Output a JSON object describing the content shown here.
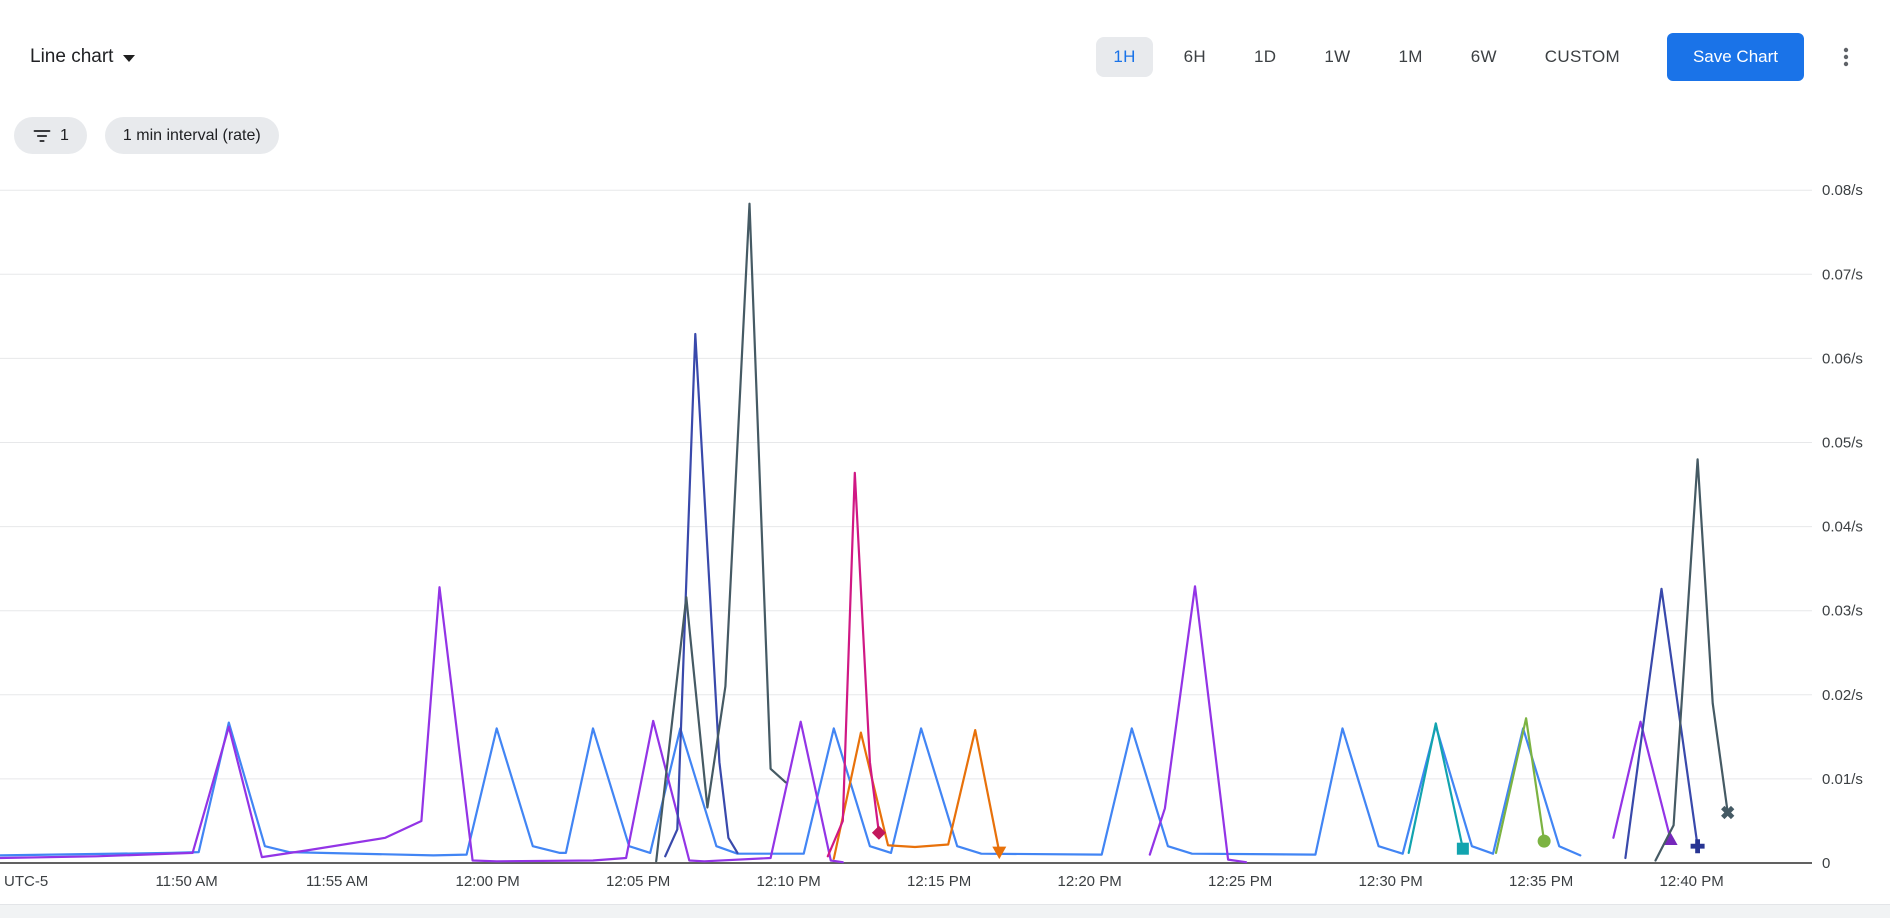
{
  "header": {
    "chart_type_label": "Line chart",
    "time_ranges": [
      "1H",
      "6H",
      "1D",
      "1W",
      "1M",
      "6W",
      "CUSTOM"
    ],
    "selected_range": "1H",
    "save_button_label": "Save Chart",
    "accent_color": "#1a73e8"
  },
  "filters": {
    "filter_count": "1",
    "interval_chip": "1 min interval (rate)"
  },
  "icons": {
    "dropdown": "chevron-down-icon",
    "filter": "filter-list-icon",
    "more": "vertical-ellipsis-icon"
  },
  "chart_data": {
    "type": "line",
    "title": "",
    "grid": true,
    "legend_position": "none",
    "x_axis": {
      "timezone_label": "UTC-5",
      "unit": "minutes_after_11:00_AM",
      "tick_labels": [
        "11:50 AM",
        "11:55 AM",
        "12:00 PM",
        "12:05 PM",
        "12:10 PM",
        "12:15 PM",
        "12:20 PM",
        "12:25 PM",
        "12:30 PM",
        "12:35 PM",
        "12:40 PM"
      ],
      "tick_minutes": [
        50,
        55,
        60,
        65,
        70,
        75,
        80,
        85,
        90,
        95,
        100
      ],
      "domain_minutes": [
        43.8,
        104.0
      ]
    },
    "y_axis": {
      "tick_labels": [
        "0",
        "0.01/s",
        "0.02/s",
        "0.03/s",
        "0.04/s",
        "0.05/s",
        "0.06/s",
        "0.07/s",
        "0.08/s"
      ],
      "tick_values": [
        0,
        0.01,
        0.02,
        0.03,
        0.04,
        0.05,
        0.06,
        0.07,
        0.08
      ],
      "ylim": [
        0,
        0.0835
      ]
    },
    "series": [
      {
        "name": "blue-series",
        "color": "#4285F4",
        "segments": [
          [
            [
              43.8,
              0.0009
            ],
            [
              49.5,
              0.0012
            ],
            [
              50.4,
              0.0013
            ],
            [
              51.4,
              0.0167
            ],
            [
              52.6,
              0.002
            ],
            [
              53.4,
              0.0013
            ],
            [
              58.2,
              0.0009
            ],
            [
              59.3,
              0.001
            ],
            [
              60.3,
              0.016
            ],
            [
              61.5,
              0.002
            ],
            [
              62.4,
              0.0012
            ],
            [
              62.6,
              0.0012
            ],
            [
              63.5,
              0.016
            ],
            [
              64.7,
              0.002
            ],
            [
              65.4,
              0.0012
            ],
            [
              66.4,
              0.016
            ],
            [
              67.6,
              0.002
            ],
            [
              68.3,
              0.0011
            ],
            [
              70.5,
              0.0011
            ],
            [
              71.5,
              0.016
            ],
            [
              72.7,
              0.002
            ],
            [
              73.4,
              0.0012
            ],
            [
              74.4,
              0.016
            ],
            [
              75.6,
              0.002
            ],
            [
              76.4,
              0.0011
            ],
            [
              80.4,
              0.001
            ],
            [
              81.4,
              0.016
            ],
            [
              82.6,
              0.002
            ],
            [
              83.4,
              0.0011
            ],
            [
              87.5,
              0.001
            ],
            [
              88.4,
              0.016
            ],
            [
              89.6,
              0.002
            ],
            [
              90.4,
              0.0011
            ],
            [
              91.5,
              0.0163
            ],
            [
              92.7,
              0.002
            ],
            [
              93.4,
              0.0011
            ],
            [
              94.4,
              0.016
            ],
            [
              95.6,
              0.002
            ],
            [
              96.3,
              0.0009
            ]
          ]
        ]
      },
      {
        "name": "purple-series",
        "color": "#9334E6",
        "segments": [
          [
            [
              43.8,
              0.0006
            ],
            [
              47.0,
              0.0008
            ],
            [
              50.2,
              0.0012
            ],
            [
              51.4,
              0.0162
            ],
            [
              52.5,
              0.0007
            ],
            [
              54.0,
              0.0015
            ],
            [
              56.6,
              0.003
            ],
            [
              57.8,
              0.005
            ],
            [
              58.4,
              0.0328
            ],
            [
              59.5,
              0.0003
            ],
            [
              60.3,
              0.0002
            ],
            [
              63.5,
              0.0003
            ],
            [
              64.6,
              0.0006
            ],
            [
              65.5,
              0.0169
            ],
            [
              66.7,
              0.0003
            ],
            [
              67.2,
              0.0002
            ],
            [
              69.4,
              0.0006
            ],
            [
              70.4,
              0.0168
            ],
            [
              71.4,
              0.0003
            ],
            [
              71.8,
              0.0001
            ]
          ],
          [
            [
              82.0,
              0.001
            ],
            [
              82.5,
              0.0065
            ],
            [
              83.5,
              0.0329
            ],
            [
              84.6,
              0.0004
            ],
            [
              85.2,
              0.0001
            ]
          ],
          [
            [
              97.4,
              0.003
            ],
            [
              98.3,
              0.0168
            ],
            [
              99.3,
              0.0028
            ]
          ]
        ],
        "marker": {
          "shape": "triangle-up",
          "color": "#7627BB",
          "at": [
            99.3,
            0.0028
          ]
        }
      },
      {
        "name": "orange-series",
        "color": "#E8710A",
        "segments": [
          [
            [
              71.5,
              0.0005
            ],
            [
              72.4,
              0.0155
            ],
            [
              73.3,
              0.0021
            ],
            [
              74.2,
              0.0019
            ],
            [
              75.3,
              0.0022
            ],
            [
              76.2,
              0.0158
            ],
            [
              77.0,
              0.0013
            ]
          ]
        ],
        "marker": {
          "shape": "triangle-down",
          "color": "#E8710A",
          "at": [
            77.0,
            0.0013
          ]
        }
      },
      {
        "name": "magenta-series",
        "color": "#D01884",
        "segments": [
          [
            [
              71.3,
              0.0008
            ],
            [
              71.8,
              0.005
            ],
            [
              72.2,
              0.0464
            ],
            [
              72.7,
              0.012
            ],
            [
              73.0,
              0.0036
            ]
          ]
        ],
        "marker": {
          "shape": "diamond",
          "color": "#C2185B",
          "at": [
            73.0,
            0.0036
          ]
        }
      },
      {
        "name": "teal-series",
        "color": "#12A4AF",
        "segments": [
          [
            [
              90.6,
              0.0012
            ],
            [
              91.5,
              0.0166
            ],
            [
              92.4,
              0.0017
            ]
          ]
        ],
        "marker": {
          "shape": "square",
          "color": "#12A4AF",
          "at": [
            92.4,
            0.0017
          ]
        }
      },
      {
        "name": "green-series",
        "color": "#7CB342",
        "segments": [
          [
            [
              93.5,
              0.0012
            ],
            [
              94.5,
              0.0172
            ],
            [
              95.1,
              0.0026
            ]
          ]
        ],
        "marker": {
          "shape": "circle",
          "color": "#7CB342",
          "at": [
            95.1,
            0.0026
          ]
        }
      },
      {
        "name": "indigo-series",
        "color": "#3949AB",
        "segments": [
          [
            [
              65.9,
              0.0008
            ],
            [
              66.3,
              0.004
            ],
            [
              66.9,
              0.0629
            ],
            [
              67.7,
              0.012
            ],
            [
              68.0,
              0.003
            ],
            [
              68.3,
              0.0012
            ]
          ],
          [
            [
              97.8,
              0.0006
            ],
            [
              99.0,
              0.0326
            ],
            [
              100.2,
              0.002
            ]
          ]
        ],
        "marker": {
          "shape": "plus",
          "color": "#283593",
          "at": [
            100.2,
            0.002
          ]
        }
      },
      {
        "name": "slate-series",
        "color": "#455A64",
        "segments": [
          [
            [
              65.6,
              0.0002
            ],
            [
              66.6,
              0.0316
            ],
            [
              67.3,
              0.0066
            ],
            [
              67.9,
              0.021
            ],
            [
              68.7,
              0.0784
            ],
            [
              69.4,
              0.0112
            ],
            [
              69.9,
              0.0096
            ]
          ],
          [
            [
              98.8,
              0.0003
            ],
            [
              99.4,
              0.0045
            ],
            [
              100.2,
              0.048
            ],
            [
              100.7,
              0.019
            ],
            [
              101.2,
              0.006
            ]
          ]
        ],
        "marker": {
          "shape": "x",
          "color": "#455A64",
          "at": [
            101.2,
            0.006
          ]
        }
      }
    ]
  }
}
